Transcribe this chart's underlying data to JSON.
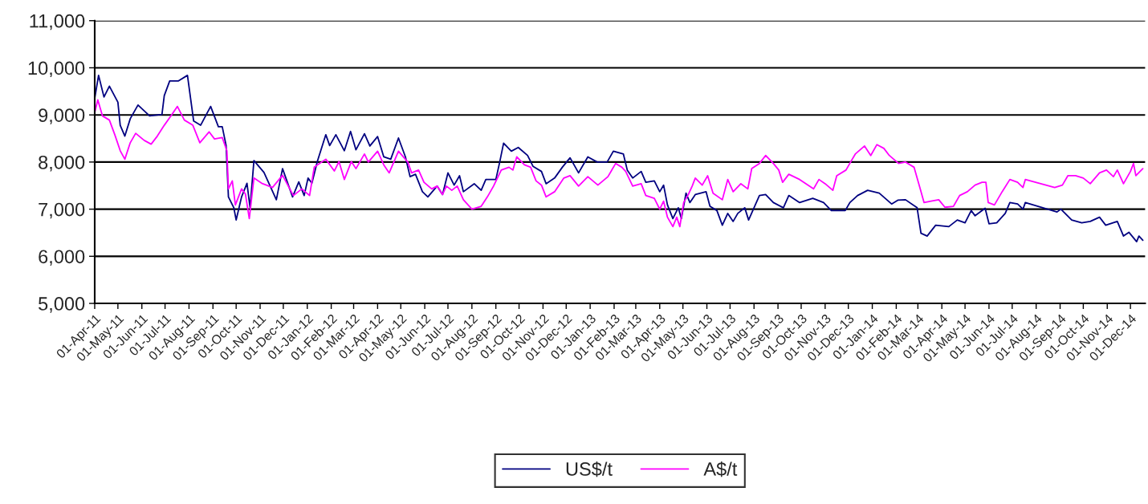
{
  "chart_data": {
    "type": "line",
    "xlim": [
      "2011-04-01",
      "2014-12-20"
    ],
    "ylim": [
      5000,
      11000
    ],
    "yticks": [
      {
        "value": 5000,
        "label": "5,000"
      },
      {
        "value": 6000,
        "label": "6,000"
      },
      {
        "value": 7000,
        "label": "7,000"
      },
      {
        "value": 8000,
        "label": "8,000"
      },
      {
        "value": 9000,
        "label": "9,000"
      },
      {
        "value": 10000,
        "label": "10,000"
      },
      {
        "value": 11000,
        "label": "11,000"
      }
    ],
    "xticks": [
      {
        "value": "2011-04-01",
        "label": "01-Apr-11"
      },
      {
        "value": "2011-05-01",
        "label": "01-May-11"
      },
      {
        "value": "2011-06-01",
        "label": "01-Jun-11"
      },
      {
        "value": "2011-07-01",
        "label": "01-Jul-11"
      },
      {
        "value": "2011-08-01",
        "label": "01-Aug-11"
      },
      {
        "value": "2011-09-01",
        "label": "01-Sep-11"
      },
      {
        "value": "2011-10-01",
        "label": "01-Oct-11"
      },
      {
        "value": "2011-11-01",
        "label": "01-Nov-11"
      },
      {
        "value": "2011-12-01",
        "label": "01-Dec-11"
      },
      {
        "value": "2012-01-01",
        "label": "01-Jan-12"
      },
      {
        "value": "2012-02-01",
        "label": "01-Feb-12"
      },
      {
        "value": "2012-03-01",
        "label": "01-Mar-12"
      },
      {
        "value": "2012-04-01",
        "label": "01-Apr-12"
      },
      {
        "value": "2012-05-01",
        "label": "01-May-12"
      },
      {
        "value": "2012-06-01",
        "label": "01-Jun-12"
      },
      {
        "value": "2012-07-01",
        "label": "01-Jul-12"
      },
      {
        "value": "2012-08-01",
        "label": "01-Aug-12"
      },
      {
        "value": "2012-09-01",
        "label": "01-Sep-12"
      },
      {
        "value": "2012-10-01",
        "label": "01-Oct-12"
      },
      {
        "value": "2012-11-01",
        "label": "01-Nov-12"
      },
      {
        "value": "2012-12-01",
        "label": "01-Dec-12"
      },
      {
        "value": "2013-01-01",
        "label": "01-Jan-13"
      },
      {
        "value": "2013-02-01",
        "label": "01-Feb-13"
      },
      {
        "value": "2013-03-01",
        "label": "01-Mar-13"
      },
      {
        "value": "2013-04-01",
        "label": "01-Apr-13"
      },
      {
        "value": "2013-05-01",
        "label": "01-May-13"
      },
      {
        "value": "2013-06-01",
        "label": "01-Jun-13"
      },
      {
        "value": "2013-07-01",
        "label": "01-Jul-13"
      },
      {
        "value": "2013-08-01",
        "label": "01-Aug-13"
      },
      {
        "value": "2013-09-01",
        "label": "01-Sep-13"
      },
      {
        "value": "2013-10-01",
        "label": "01-Oct-13"
      },
      {
        "value": "2013-11-01",
        "label": "01-Nov-13"
      },
      {
        "value": "2013-12-01",
        "label": "01-Dec-13"
      },
      {
        "value": "2014-01-01",
        "label": "01-Jan-14"
      },
      {
        "value": "2014-02-01",
        "label": "01-Feb-14"
      },
      {
        "value": "2014-03-01",
        "label": "01-Mar-14"
      },
      {
        "value": "2014-04-01",
        "label": "01-Apr-14"
      },
      {
        "value": "2014-05-01",
        "label": "01-May-14"
      },
      {
        "value": "2014-06-01",
        "label": "01-Jun-14"
      },
      {
        "value": "2014-07-01",
        "label": "01-Jul-14"
      },
      {
        "value": "2014-08-01",
        "label": "01-Aug-14"
      },
      {
        "value": "2014-09-01",
        "label": "01-Sep-14"
      },
      {
        "value": "2014-10-01",
        "label": "01-Oct-14"
      },
      {
        "value": "2014-11-01",
        "label": "01-Nov-14"
      },
      {
        "value": "2014-12-01",
        "label": "01-Dec-14"
      }
    ],
    "grid": "y",
    "legend": "bottom",
    "marker": "none",
    "line_style": "solid",
    "series": [
      {
        "name": "US$/t",
        "color": "#000080",
        "x": [
          "2011-04-01",
          "2011-04-06",
          "2011-04-13",
          "2011-04-20",
          "2011-05-01",
          "2011-05-04",
          "2011-05-10",
          "2011-05-17",
          "2011-05-27",
          "2011-06-11",
          "2011-06-27",
          "2011-06-30",
          "2011-07-07",
          "2011-07-18",
          "2011-07-30",
          "2011-08-07",
          "2011-08-16",
          "2011-08-29",
          "2011-09-08",
          "2011-09-13",
          "2011-09-18",
          "2011-09-21",
          "2011-09-28",
          "2011-10-01",
          "2011-10-08",
          "2011-10-15",
          "2011-10-19",
          "2011-10-24",
          "2011-11-06",
          "2011-11-22",
          "2011-11-30",
          "2011-12-13",
          "2011-12-21",
          "2011-12-28",
          "2012-01-02",
          "2012-01-07",
          "2012-01-14",
          "2012-01-25",
          "2012-01-30",
          "2012-02-07",
          "2012-02-18",
          "2012-02-26",
          "2012-03-04",
          "2012-03-15",
          "2012-03-22",
          "2012-04-01",
          "2012-04-09",
          "2012-04-18",
          "2012-04-28",
          "2012-05-07",
          "2012-05-13",
          "2012-05-20",
          "2012-05-29",
          "2012-06-05",
          "2012-06-17",
          "2012-06-24",
          "2012-07-01",
          "2012-07-09",
          "2012-07-16",
          "2012-07-21",
          "2012-08-04",
          "2012-08-13",
          "2012-08-19",
          "2012-09-01",
          "2012-09-06",
          "2012-09-11",
          "2012-09-21",
          "2012-09-30",
          "2012-10-12",
          "2012-10-19",
          "2012-10-30",
          "2012-11-05",
          "2012-11-16",
          "2012-11-26",
          "2012-12-06",
          "2012-12-17",
          "2012-12-29",
          "2013-01-10",
          "2013-01-23",
          "2013-01-31",
          "2013-02-13",
          "2013-02-18",
          "2013-02-25",
          "2013-03-08",
          "2013-03-14",
          "2013-03-25",
          "2013-04-01",
          "2013-04-06",
          "2013-04-11",
          "2013-04-18",
          "2013-04-25",
          "2013-04-29",
          "2013-05-05",
          "2013-05-10",
          "2013-05-17",
          "2013-05-31",
          "2013-06-05",
          "2013-06-14",
          "2013-06-21",
          "2013-06-28",
          "2013-07-05",
          "2013-07-11",
          "2013-07-20",
          "2013-07-25",
          "2013-08-01",
          "2013-08-08",
          "2013-08-16",
          "2013-08-26",
          "2013-09-08",
          "2013-09-15",
          "2013-09-29",
          "2013-10-16",
          "2013-10-30",
          "2013-11-09",
          "2013-11-27",
          "2013-12-03",
          "2013-12-13",
          "2013-12-26",
          "2014-01-10",
          "2014-01-26",
          "2014-02-03",
          "2014-02-13",
          "2014-02-28",
          "2014-03-05",
          "2014-03-13",
          "2014-03-24",
          "2014-04-10",
          "2014-04-21",
          "2014-05-01",
          "2014-05-09",
          "2014-05-14",
          "2014-05-27",
          "2014-06-01",
          "2014-06-11",
          "2014-06-22",
          "2014-06-28",
          "2014-07-08",
          "2014-07-15",
          "2014-07-18",
          "2014-08-28",
          "2014-09-02",
          "2014-09-16",
          "2014-09-29",
          "2014-10-10",
          "2014-10-22",
          "2014-10-30",
          "2014-11-14",
          "2014-11-22",
          "2014-11-29",
          "2014-12-09",
          "2014-12-12",
          "2014-12-17"
        ],
        "values": [
          9350,
          9840,
          9380,
          9610,
          9270,
          8780,
          8550,
          8920,
          9210,
          8980,
          9010,
          9410,
          9720,
          9720,
          9840,
          8870,
          8780,
          9180,
          8750,
          8750,
          8350,
          7260,
          7030,
          6770,
          7260,
          7550,
          7030,
          8030,
          7780,
          7200,
          7860,
          7260,
          7580,
          7290,
          7660,
          7550,
          8010,
          8580,
          8350,
          8580,
          8240,
          8650,
          8260,
          8600,
          8340,
          8540,
          8110,
          8060,
          8510,
          8110,
          7690,
          7740,
          7370,
          7260,
          7490,
          7310,
          7770,
          7510,
          7710,
          7370,
          7540,
          7400,
          7630,
          7630,
          8000,
          8400,
          8230,
          8310,
          8140,
          7910,
          7800,
          7540,
          7660,
          7890,
          8090,
          7770,
          8110,
          8000,
          8000,
          8230,
          8170,
          7830,
          7660,
          7800,
          7570,
          7600,
          7370,
          7510,
          7090,
          6800,
          7030,
          6800,
          7340,
          7140,
          7310,
          7370,
          7060,
          6970,
          6660,
          6910,
          6740,
          6910,
          7030,
          6770,
          7030,
          7290,
          7310,
          7140,
          7030,
          7290,
          7140,
          7230,
          7140,
          6970,
          6970,
          7140,
          7290,
          7400,
          7340,
          7110,
          7190,
          7200,
          7030,
          6490,
          6430,
          6660,
          6630,
          6770,
          6710,
          6970,
          6860,
          7020,
          6690,
          6710,
          6910,
          7140,
          7110,
          7000,
          7140,
          6940,
          7000,
          6770,
          6710,
          6740,
          6830,
          6660,
          6740,
          6430,
          6510,
          6310,
          6430,
          6340
        ]
      },
      {
        "name": "A$/t",
        "color": "#ff00ff",
        "x": [
          "2011-04-01",
          "2011-04-05",
          "2011-04-11",
          "2011-04-20",
          "2011-04-27",
          "2011-05-04",
          "2011-05-10",
          "2011-05-17",
          "2011-05-24",
          "2011-06-04",
          "2011-06-13",
          "2011-06-21",
          "2011-06-30",
          "2011-07-10",
          "2011-07-17",
          "2011-07-26",
          "2011-08-06",
          "2011-08-15",
          "2011-08-27",
          "2011-09-03",
          "2011-09-13",
          "2011-09-19",
          "2011-09-21",
          "2011-09-26",
          "2011-09-30",
          "2011-10-08",
          "2011-10-13",
          "2011-10-18",
          "2011-10-24",
          "2011-11-03",
          "2011-11-17",
          "2011-11-30",
          "2011-12-14",
          "2011-12-25",
          "2012-01-04",
          "2012-01-10",
          "2012-01-25",
          "2012-02-05",
          "2012-02-11",
          "2012-02-18",
          "2012-02-27",
          "2012-03-04",
          "2012-03-15",
          "2012-03-20",
          "2012-04-01",
          "2012-04-09",
          "2012-04-16",
          "2012-04-28",
          "2012-05-10",
          "2012-05-15",
          "2012-05-24",
          "2012-05-31",
          "2012-06-10",
          "2012-06-17",
          "2012-06-24",
          "2012-06-29",
          "2012-07-06",
          "2012-07-13",
          "2012-07-21",
          "2012-08-01",
          "2012-08-13",
          "2012-08-21",
          "2012-08-29",
          "2012-09-08",
          "2012-09-18",
          "2012-09-23",
          "2012-09-28",
          "2012-10-08",
          "2012-10-16",
          "2012-10-23",
          "2012-10-30",
          "2012-11-05",
          "2012-11-16",
          "2012-11-28",
          "2012-12-06",
          "2012-12-17",
          "2012-12-29",
          "2013-01-11",
          "2013-01-24",
          "2013-02-03",
          "2013-02-11",
          "2013-02-16",
          "2013-02-25",
          "2013-03-08",
          "2013-03-14",
          "2013-03-25",
          "2013-04-01",
          "2013-04-06",
          "2013-04-11",
          "2013-04-18",
          "2013-04-23",
          "2013-04-27",
          "2013-05-02",
          "2013-05-08",
          "2013-05-13",
          "2013-05-17",
          "2013-05-26",
          "2013-06-02",
          "2013-06-09",
          "2013-06-21",
          "2013-06-28",
          "2013-07-05",
          "2013-07-15",
          "2013-07-24",
          "2013-07-29",
          "2013-08-08",
          "2013-08-16",
          "2013-08-26",
          "2013-09-02",
          "2013-09-07",
          "2013-09-15",
          "2013-09-29",
          "2013-10-17",
          "2013-10-24",
          "2013-11-01",
          "2013-11-11",
          "2013-11-16",
          "2013-11-28",
          "2013-12-05",
          "2013-12-10",
          "2013-12-22",
          "2013-12-30",
          "2014-01-07",
          "2014-01-16",
          "2014-01-23",
          "2014-02-04",
          "2014-02-13",
          "2014-02-24",
          "2014-03-04",
          "2014-03-09",
          "2014-03-18",
          "2014-03-28",
          "2014-04-05",
          "2014-04-16",
          "2014-04-24",
          "2014-05-04",
          "2014-05-14",
          "2014-05-23",
          "2014-05-28",
          "2014-05-31",
          "2014-06-08",
          "2014-06-18",
          "2014-06-28",
          "2014-07-08",
          "2014-07-15",
          "2014-07-18",
          "2014-08-25",
          "2014-09-04",
          "2014-09-11",
          "2014-09-21",
          "2014-10-01",
          "2014-10-10",
          "2014-10-22",
          "2014-10-31",
          "2014-11-09",
          "2014-11-14",
          "2014-11-22",
          "2014-12-01",
          "2014-12-05",
          "2014-12-08",
          "2014-12-17"
        ],
        "values": [
          9050,
          9320,
          8980,
          8890,
          8580,
          8240,
          8060,
          8410,
          8610,
          8460,
          8380,
          8550,
          8780,
          9010,
          9180,
          8890,
          8780,
          8410,
          8640,
          8490,
          8520,
          8240,
          7430,
          7600,
          7090,
          7430,
          7320,
          6800,
          7660,
          7550,
          7460,
          7720,
          7290,
          7430,
          7290,
          7890,
          8060,
          7810,
          8010,
          7630,
          8010,
          7860,
          8170,
          8000,
          8230,
          7940,
          7770,
          8230,
          8000,
          7770,
          7830,
          7570,
          7430,
          7490,
          7310,
          7490,
          7400,
          7490,
          7200,
          7000,
          7060,
          7260,
          7490,
          7830,
          7890,
          7830,
          8110,
          7940,
          7890,
          7600,
          7510,
          7260,
          7370,
          7660,
          7710,
          7490,
          7690,
          7510,
          7690,
          7970,
          7890,
          7800,
          7490,
          7540,
          7290,
          7230,
          7000,
          7170,
          6830,
          6630,
          6830,
          6630,
          7140,
          7310,
          7490,
          7660,
          7510,
          7710,
          7340,
          7200,
          7630,
          7370,
          7540,
          7430,
          7860,
          7970,
          8140,
          7970,
          7830,
          7570,
          7740,
          7630,
          7430,
          7630,
          7540,
          7400,
          7710,
          7830,
          8030,
          8170,
          8340,
          8140,
          8370,
          8290,
          8140,
          7970,
          8000,
          7890,
          7430,
          7140,
          7170,
          7200,
          7040,
          7060,
          7290,
          7370,
          7510,
          7570,
          7570,
          7140,
          7090,
          7370,
          7630,
          7570,
          7460,
          7630,
          7460,
          7510,
          7710,
          7710,
          7660,
          7540,
          7770,
          7830,
          7690,
          7830,
          7540,
          7800,
          7970,
          7710,
          7860
        ]
      }
    ]
  }
}
